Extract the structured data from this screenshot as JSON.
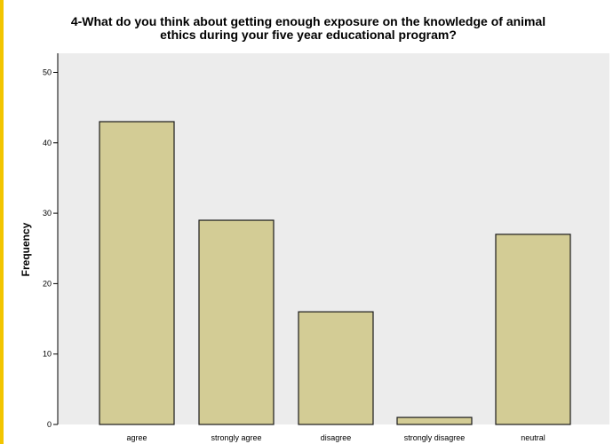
{
  "chart_data": {
    "type": "bar",
    "title": "4-What do you think about getting enough exposure on the knowledge of animal\nethics during your five year educational program?",
    "xlabel": "",
    "ylabel": "Frequency",
    "categories": [
      "agree",
      "strongly agree",
      "disagree",
      "strongly disagree",
      "neutral"
    ],
    "values": [
      43,
      29,
      16,
      1,
      27
    ],
    "ylim": [
      0,
      52
    ],
    "yticks": [
      0,
      10,
      20,
      30,
      40,
      50
    ],
    "grid": false,
    "legend": "none",
    "colors": {
      "bar": "#d3cc95",
      "bar_edge": "#1a1a1a",
      "plot_bg": "#ececec",
      "accent": "#f2c500"
    }
  }
}
